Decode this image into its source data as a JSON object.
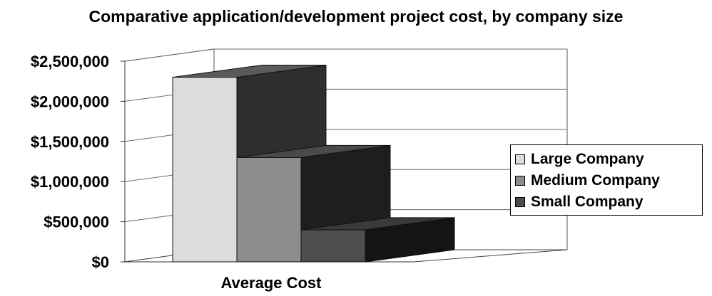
{
  "chart_data": {
    "type": "bar",
    "style": "3d-column",
    "title": "Comparative application/development project cost, by company size",
    "xlabel": "Average Cost",
    "ylabel": "",
    "categories": [
      "Average Cost"
    ],
    "series": [
      {
        "name": "Large Company",
        "values": [
          2300000
        ],
        "color": "#dcdcdc",
        "side_color": "#2e2e2e",
        "top_color": "#5a5a5a"
      },
      {
        "name": "Medium Company",
        "values": [
          1300000
        ],
        "color": "#8c8c8c",
        "side_color": "#1e1e1e",
        "top_color": "#4a4a4a"
      },
      {
        "name": "Small Company",
        "values": [
          400000
        ],
        "color": "#4d4d4d",
        "side_color": "#141414",
        "top_color": "#3a3a3a"
      }
    ],
    "y_ticks": [
      "$0",
      "$500,000",
      "$1,000,000",
      "$1,500,000",
      "$2,000,000",
      "$2,500,000"
    ],
    "y_tick_values": [
      0,
      500000,
      1000000,
      1500000,
      2000000,
      2500000
    ],
    "ylim": [
      0,
      2500000
    ],
    "grid": true,
    "legend_position": "right"
  }
}
